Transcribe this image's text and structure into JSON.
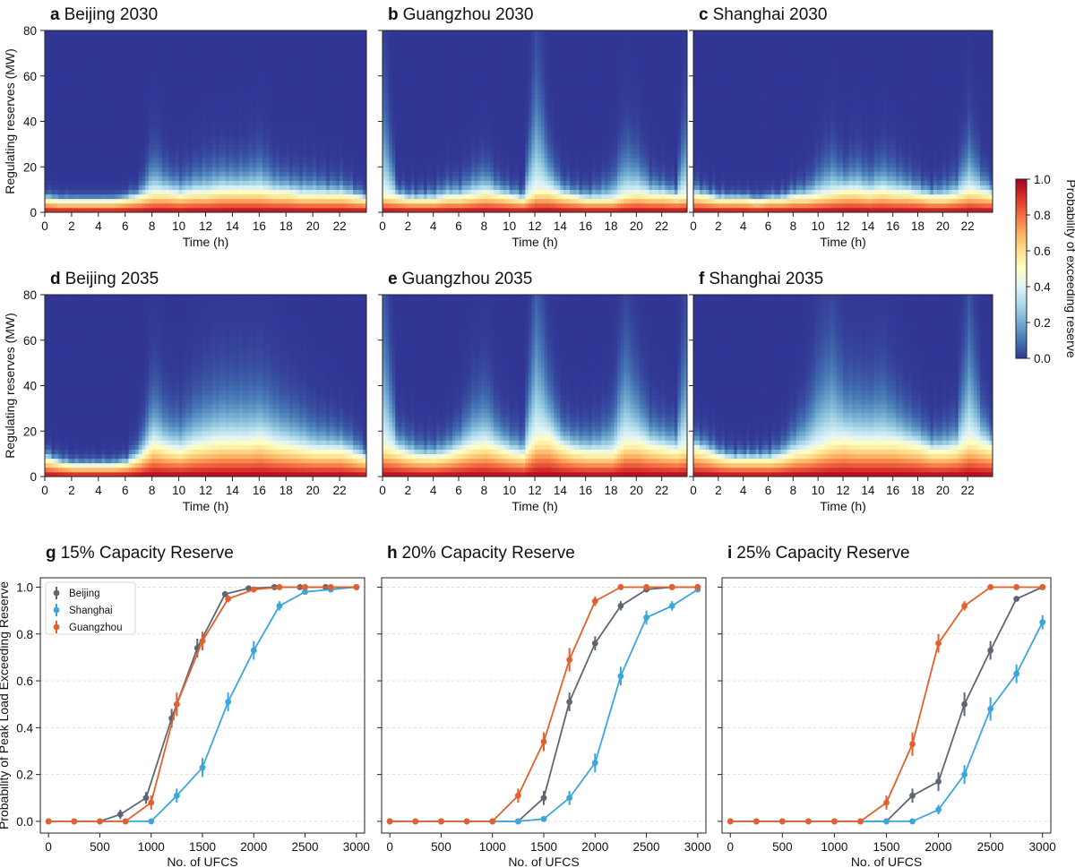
{
  "chart_data": [
    {
      "type": "heatmap",
      "letter": "a",
      "title": "Beijing 2030",
      "xlabel": "Time (h)",
      "ylabel": "Regulating reserves (MW)",
      "xlim": [
        0,
        24
      ],
      "ylim": [
        0,
        80
      ],
      "xticks": [
        "0",
        "2",
        "4",
        "6",
        "8",
        "10",
        "12",
        "14",
        "16",
        "18",
        "20",
        "22"
      ],
      "yticks": [
        "0",
        "20",
        "40",
        "60",
        "80"
      ],
      "reserve_threshold_mw_by_hour": [
        6,
        5,
        5,
        5,
        5,
        5,
        6,
        7,
        9,
        9,
        8,
        9,
        9,
        10,
        10,
        10,
        10,
        9,
        9,
        8,
        8,
        8,
        8,
        7
      ],
      "spread_mw_by_hour": [
        3,
        3,
        2,
        2,
        2,
        2,
        3,
        6,
        20,
        12,
        10,
        12,
        14,
        15,
        14,
        15,
        18,
        12,
        10,
        10,
        10,
        8,
        8,
        6
      ]
    },
    {
      "type": "heatmap",
      "letter": "b",
      "title": "Guangzhou 2030",
      "xlabel": "Time (h)",
      "ylabel": "",
      "xlim": [
        0,
        24
      ],
      "ylim": [
        0,
        80
      ],
      "xticks": [
        "0",
        "2",
        "4",
        "6",
        "8",
        "10",
        "12",
        "14",
        "16",
        "18",
        "20",
        "22"
      ],
      "yticks": [
        "0",
        "20",
        "40",
        "60",
        "80"
      ],
      "reserve_threshold_mw_by_hour": [
        8,
        7,
        6,
        6,
        6,
        7,
        7,
        8,
        9,
        8,
        7,
        6,
        10,
        10,
        8,
        7,
        6,
        6,
        6,
        8,
        9,
        8,
        8,
        7
      ],
      "spread_mw_by_hour": [
        50,
        6,
        5,
        5,
        6,
        8,
        8,
        12,
        14,
        8,
        6,
        5,
        60,
        20,
        8,
        6,
        6,
        8,
        12,
        26,
        20,
        10,
        8,
        6
      ]
    },
    {
      "type": "heatmap",
      "letter": "c",
      "title": "Shanghai 2030",
      "xlabel": "Time (h)",
      "ylabel": "",
      "xlim": [
        0,
        24
      ],
      "ylim": [
        0,
        80
      ],
      "xticks": [
        "0",
        "2",
        "4",
        "6",
        "8",
        "10",
        "12",
        "14",
        "16",
        "18",
        "20",
        "22"
      ],
      "yticks": [
        "0",
        "20",
        "40",
        "60",
        "80"
      ],
      "reserve_threshold_mw_by_hour": [
        8,
        7,
        6,
        6,
        6,
        5,
        6,
        6,
        7,
        7,
        8,
        9,
        10,
        10,
        9,
        10,
        9,
        9,
        8,
        7,
        7,
        8,
        10,
        9
      ],
      "spread_mw_by_hour": [
        6,
        5,
        4,
        3,
        3,
        3,
        3,
        4,
        6,
        8,
        14,
        20,
        12,
        16,
        12,
        16,
        14,
        10,
        8,
        6,
        8,
        10,
        28,
        12
      ]
    },
    {
      "type": "heatmap",
      "letter": "d",
      "title": "Beijing 2035",
      "xlabel": "Time (h)",
      "ylabel": "Regulating reserves (MW)",
      "xlim": [
        0,
        24
      ],
      "ylim": [
        0,
        80
      ],
      "xticks": [
        "0",
        "2",
        "4",
        "6",
        "8",
        "10",
        "12",
        "14",
        "16",
        "18",
        "20",
        "22"
      ],
      "yticks": [
        "0",
        "20",
        "40",
        "60",
        "80"
      ],
      "reserve_threshold_mw_by_hour": [
        8,
        6,
        5,
        5,
        5,
        5,
        6,
        9,
        15,
        13,
        12,
        14,
        15,
        16,
        16,
        16,
        17,
        15,
        14,
        13,
        12,
        12,
        12,
        10
      ],
      "spread_mw_by_hour": [
        5,
        4,
        3,
        3,
        3,
        3,
        4,
        10,
        30,
        20,
        18,
        24,
        28,
        30,
        30,
        30,
        30,
        26,
        22,
        20,
        16,
        14,
        12,
        10
      ]
    },
    {
      "type": "heatmap",
      "letter": "e",
      "title": "Guangzhou 2035",
      "xlabel": "Time (h)",
      "ylabel": "",
      "xlim": [
        0,
        24
      ],
      "ylim": [
        0,
        80
      ],
      "xticks": [
        "0",
        "2",
        "4",
        "6",
        "8",
        "10",
        "12",
        "14",
        "16",
        "18",
        "20",
        "22"
      ],
      "yticks": [
        "0",
        "20",
        "40",
        "60",
        "80"
      ],
      "reserve_threshold_mw_by_hour": [
        14,
        12,
        10,
        9,
        9,
        10,
        12,
        14,
        15,
        13,
        11,
        10,
        18,
        18,
        14,
        12,
        11,
        11,
        11,
        16,
        16,
        14,
        13,
        12
      ],
      "spread_mw_by_hour": [
        70,
        12,
        10,
        8,
        8,
        10,
        14,
        24,
        28,
        16,
        12,
        10,
        72,
        30,
        14,
        12,
        12,
        14,
        20,
        50,
        30,
        16,
        14,
        12
      ]
    },
    {
      "type": "heatmap",
      "letter": "f",
      "title": "Shanghai 2035",
      "xlabel": "Time (h)",
      "ylabel": "",
      "xlim": [
        0,
        24
      ],
      "ylim": [
        0,
        80
      ],
      "xticks": [
        "0",
        "2",
        "4",
        "6",
        "8",
        "10",
        "12",
        "14",
        "16",
        "18",
        "20",
        "22"
      ],
      "yticks": [
        "0",
        "20",
        "40",
        "60",
        "80"
      ],
      "reserve_threshold_mw_by_hour": [
        13,
        11,
        9,
        8,
        8,
        8,
        8,
        9,
        11,
        12,
        14,
        16,
        17,
        16,
        16,
        16,
        16,
        15,
        14,
        12,
        12,
        13,
        17,
        15
      ],
      "spread_mw_by_hour": [
        8,
        8,
        6,
        5,
        5,
        5,
        6,
        8,
        14,
        22,
        40,
        50,
        30,
        30,
        28,
        32,
        24,
        18,
        14,
        10,
        12,
        14,
        60,
        20
      ]
    },
    {
      "type": "scatter",
      "letter": "g",
      "title": "15% Capacity Reserve",
      "xlabel": "No. of UFCS",
      "ylabel": "Probability of Peak Load Exceeding Reserve",
      "xlim": [
        -80,
        3080
      ],
      "ylim": [
        -0.05,
        1.04
      ],
      "xticks": [
        "0",
        "500",
        "1000",
        "1500",
        "2000",
        "2500",
        "3000"
      ],
      "yticks": [
        "0.0",
        "0.2",
        "0.4",
        "0.6",
        "0.8",
        "1.0"
      ],
      "legend": "upper-left",
      "series": [
        {
          "name": "Beijing",
          "color": "#5f6672",
          "x": [
            0,
            250,
            500,
            700,
            950,
            1200,
            1450,
            1720,
            1950,
            2200,
            2450,
            2700,
            3000
          ],
          "y": [
            0,
            0,
            0,
            0.03,
            0.1,
            0.44,
            0.74,
            0.97,
            0.995,
            1.0,
            1.0,
            1.0,
            1.0
          ],
          "err": [
            0.005,
            0.005,
            0.005,
            0.02,
            0.025,
            0.04,
            0.04,
            0.01,
            0.005,
            0.003,
            0.003,
            0.003,
            0.003
          ]
        },
        {
          "name": "Shanghai",
          "color": "#3aa6dc",
          "x": [
            0,
            250,
            500,
            750,
            1000,
            1250,
            1500,
            1750,
            2000,
            2250,
            2500,
            2750,
            3000
          ],
          "y": [
            0,
            0,
            0,
            0,
            0,
            0.11,
            0.23,
            0.51,
            0.73,
            0.92,
            0.98,
            0.99,
            1.0
          ],
          "err": [
            0.005,
            0.005,
            0.005,
            0.005,
            0.005,
            0.03,
            0.04,
            0.04,
            0.04,
            0.02,
            0.01,
            0.01,
            0.005
          ]
        },
        {
          "name": "Guangzhou",
          "color": "#e4602b",
          "x": [
            0,
            250,
            500,
            750,
            1000,
            1250,
            1500,
            1750,
            2000,
            2250,
            2500,
            2750,
            3000
          ],
          "y": [
            0,
            0,
            0,
            0,
            0.08,
            0.5,
            0.77,
            0.95,
            0.99,
            1.0,
            1.0,
            1.0,
            1.0
          ],
          "err": [
            0.005,
            0.005,
            0.005,
            0.005,
            0.03,
            0.05,
            0.04,
            0.015,
            0.005,
            0.003,
            0.003,
            0.003,
            0.003
          ]
        }
      ]
    },
    {
      "type": "scatter",
      "letter": "h",
      "title": "20% Capacity Reserve",
      "xlabel": "No. of UFCS",
      "ylabel": "",
      "xlim": [
        -80,
        3080
      ],
      "ylim": [
        -0.05,
        1.04
      ],
      "xticks": [
        "0",
        "500",
        "1000",
        "1500",
        "2000",
        "2500",
        "3000"
      ],
      "yticks": [
        "0.0",
        "0.2",
        "0.4",
        "0.6",
        "0.8",
        "1.0"
      ],
      "series": [
        {
          "name": "Beijing",
          "color": "#5f6672",
          "x": [
            0,
            250,
            500,
            750,
            1000,
            1250,
            1500,
            1750,
            2000,
            2250,
            2500,
            2750,
            3000
          ],
          "y": [
            0,
            0,
            0,
            0,
            0,
            0,
            0.1,
            0.51,
            0.76,
            0.92,
            0.99,
            1.0,
            1.0
          ],
          "err": [
            0.005,
            0.005,
            0.005,
            0.005,
            0.005,
            0.005,
            0.03,
            0.04,
            0.03,
            0.02,
            0.01,
            0.005,
            0.005
          ]
        },
        {
          "name": "Shanghai",
          "color": "#3aa6dc",
          "x": [
            0,
            250,
            500,
            750,
            1000,
            1250,
            1500,
            1750,
            2000,
            2250,
            2500,
            2750,
            3000
          ],
          "y": [
            0,
            0,
            0,
            0,
            0,
            0,
            0.01,
            0.1,
            0.25,
            0.62,
            0.87,
            0.92,
            0.99
          ],
          "err": [
            0.005,
            0.005,
            0.005,
            0.005,
            0.005,
            0.005,
            0.005,
            0.03,
            0.04,
            0.04,
            0.03,
            0.02,
            0.01
          ]
        },
        {
          "name": "Guangzhou",
          "color": "#e4602b",
          "x": [
            0,
            250,
            500,
            750,
            1000,
            1250,
            1500,
            1750,
            2000,
            2250,
            2500,
            2750,
            3000
          ],
          "y": [
            0,
            0,
            0,
            0,
            0,
            0.11,
            0.34,
            0.69,
            0.94,
            1.0,
            1.0,
            1.0,
            1.0
          ],
          "err": [
            0.005,
            0.005,
            0.005,
            0.005,
            0.005,
            0.03,
            0.04,
            0.05,
            0.02,
            0.005,
            0.003,
            0.003,
            0.003
          ]
        }
      ]
    },
    {
      "type": "scatter",
      "letter": "i",
      "title": "25% Capacity Reserve",
      "xlabel": "No. of UFCS",
      "ylabel": "",
      "xlim": [
        -80,
        3080
      ],
      "ylim": [
        -0.05,
        1.04
      ],
      "xticks": [
        "0",
        "500",
        "1000",
        "1500",
        "2000",
        "2500",
        "3000"
      ],
      "yticks": [
        "0.0",
        "0.2",
        "0.4",
        "0.6",
        "0.8",
        "1.0"
      ],
      "series": [
        {
          "name": "Beijing",
          "color": "#5f6672",
          "x": [
            0,
            250,
            500,
            750,
            1000,
            1250,
            1500,
            1750,
            2000,
            2250,
            2500,
            2750,
            3000
          ],
          "y": [
            0,
            0,
            0,
            0,
            0,
            0,
            0,
            0.11,
            0.17,
            0.5,
            0.73,
            0.95,
            1.0
          ],
          "err": [
            0.005,
            0.005,
            0.005,
            0.005,
            0.005,
            0.005,
            0.005,
            0.03,
            0.04,
            0.05,
            0.04,
            0.01,
            0.005
          ]
        },
        {
          "name": "Shanghai",
          "color": "#3aa6dc",
          "x": [
            0,
            250,
            500,
            750,
            1000,
            1250,
            1500,
            1750,
            2000,
            2250,
            2500,
            2750,
            3000
          ],
          "y": [
            0,
            0,
            0,
            0,
            0,
            0,
            0,
            0,
            0.05,
            0.2,
            0.48,
            0.63,
            0.85
          ],
          "err": [
            0.005,
            0.005,
            0.005,
            0.005,
            0.005,
            0.005,
            0.005,
            0.005,
            0.02,
            0.04,
            0.05,
            0.04,
            0.03
          ]
        },
        {
          "name": "Guangzhou",
          "color": "#e4602b",
          "x": [
            0,
            250,
            500,
            750,
            1000,
            1250,
            1500,
            1750,
            2000,
            2250,
            2500,
            2750,
            3000
          ],
          "y": [
            0,
            0,
            0,
            0,
            0,
            0,
            0.08,
            0.33,
            0.76,
            0.92,
            1.0,
            1.0,
            1.0
          ],
          "err": [
            0.005,
            0.005,
            0.005,
            0.005,
            0.005,
            0.005,
            0.03,
            0.05,
            0.04,
            0.02,
            0.005,
            0.003,
            0.003
          ]
        }
      ]
    }
  ],
  "colorbar": {
    "label": "Probability of exceeding reserve",
    "ticks": [
      "0.0",
      "0.2",
      "0.4",
      "0.6",
      "0.8",
      "1.0"
    ],
    "colors": [
      "#313695",
      "#4575b4",
      "#74add1",
      "#abd9e9",
      "#e0f3f8",
      "#ffffbf",
      "#fee090",
      "#fdae61",
      "#f46d43",
      "#d73027",
      "#a50026"
    ]
  }
}
